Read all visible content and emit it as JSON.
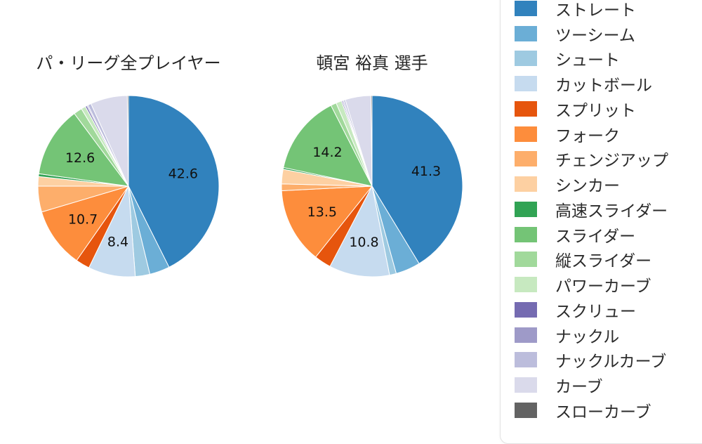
{
  "accent_colors": {
    "straight_blue": "#3182bd",
    "fork_orange": "#fd8d3c",
    "slider_green": "#74c476",
    "curve_lavender": "#dadaeb"
  },
  "chart_data": [
    {
      "type": "pie",
      "title": "パ・リーグ全プレイヤー",
      "unit": "%",
      "start_angle_deg": 0,
      "direction": "clockwise",
      "legend_position": "right",
      "series": [
        {
          "label": "ストレート",
          "value": 42.6,
          "color": "#3182bd",
          "show_label": true
        },
        {
          "label": "ツーシーム",
          "value": 3.6,
          "color": "#6baed6",
          "show_label": false
        },
        {
          "label": "シュート",
          "value": 2.6,
          "color": "#9ecae1",
          "show_label": false
        },
        {
          "label": "カットボール",
          "value": 8.4,
          "color": "#c6dbef",
          "show_label": true
        },
        {
          "label": "スプリット",
          "value": 2.5,
          "color": "#e6550d",
          "show_label": false
        },
        {
          "label": "フォーク",
          "value": 10.7,
          "color": "#fd8d3c",
          "show_label": true
        },
        {
          "label": "チェンジアップ",
          "value": 4.6,
          "color": "#fdae6b",
          "show_label": false
        },
        {
          "label": "シンカー",
          "value": 1.7,
          "color": "#fdd0a2",
          "show_label": false
        },
        {
          "label": "高速スライダー",
          "value": 0.5,
          "color": "#31a354",
          "show_label": false
        },
        {
          "label": "スライダー",
          "value": 12.6,
          "color": "#74c476",
          "show_label": true
        },
        {
          "label": "縦スライダー",
          "value": 1.5,
          "color": "#a1d99b",
          "show_label": false
        },
        {
          "label": "パワーカーブ",
          "value": 0.8,
          "color": "#c7e9c0",
          "show_label": false
        },
        {
          "label": "スクリュー",
          "value": 0.3,
          "color": "#756bb1",
          "show_label": false
        },
        {
          "label": "ナックル",
          "value": 0.2,
          "color": "#9e9ac8",
          "show_label": false
        },
        {
          "label": "ナックルカーブ",
          "value": 0.6,
          "color": "#bcbddc",
          "show_label": false
        },
        {
          "label": "カーブ",
          "value": 6.6,
          "color": "#dadaeb",
          "show_label": false
        },
        {
          "label": "スローカーブ",
          "value": 0.2,
          "color": "#636363",
          "show_label": false
        }
      ]
    },
    {
      "type": "pie",
      "title": "頓宮 裕真  選手",
      "unit": "%",
      "start_angle_deg": 0,
      "direction": "clockwise",
      "legend_position": "right",
      "series": [
        {
          "label": "ストレート",
          "value": 41.3,
          "color": "#3182bd",
          "show_label": true
        },
        {
          "label": "ツーシーム",
          "value": 4.4,
          "color": "#6baed6",
          "show_label": false
        },
        {
          "label": "シュート",
          "value": 1.2,
          "color": "#9ecae1",
          "show_label": false
        },
        {
          "label": "カットボール",
          "value": 10.8,
          "color": "#c6dbef",
          "show_label": true
        },
        {
          "label": "スプリット",
          "value": 3.0,
          "color": "#e6550d",
          "show_label": false
        },
        {
          "label": "フォーク",
          "value": 13.5,
          "color": "#fd8d3c",
          "show_label": true
        },
        {
          "label": "チェンジアップ",
          "value": 1.2,
          "color": "#fdae6b",
          "show_label": false
        },
        {
          "label": "シンカー",
          "value": 2.6,
          "color": "#fdd0a2",
          "show_label": false
        },
        {
          "label": "高速スライダー",
          "value": 0.3,
          "color": "#31a354",
          "show_label": false
        },
        {
          "label": "スライダー",
          "value": 14.2,
          "color": "#74c476",
          "show_label": true
        },
        {
          "label": "縦スライダー",
          "value": 1.0,
          "color": "#a1d99b",
          "show_label": false
        },
        {
          "label": "パワーカーブ",
          "value": 1.0,
          "color": "#c7e9c0",
          "show_label": false
        },
        {
          "label": "スクリュー",
          "value": 0.2,
          "color": "#756bb1",
          "show_label": false
        },
        {
          "label": "ナックル",
          "value": 0.2,
          "color": "#9e9ac8",
          "show_label": false
        },
        {
          "label": "ナックルカーブ",
          "value": 0.3,
          "color": "#bcbddc",
          "show_label": false
        },
        {
          "label": "カーブ",
          "value": 4.6,
          "color": "#dadaeb",
          "show_label": false
        },
        {
          "label": "スローカーブ",
          "value": 0.2,
          "color": "#636363",
          "show_label": false
        }
      ]
    }
  ],
  "legend": {
    "items": [
      {
        "label": "ストレート",
        "color": "#3182bd"
      },
      {
        "label": "ツーシーム",
        "color": "#6baed6"
      },
      {
        "label": "シュート",
        "color": "#9ecae1"
      },
      {
        "label": "カットボール",
        "color": "#c6dbef"
      },
      {
        "label": "スプリット",
        "color": "#e6550d"
      },
      {
        "label": "フォーク",
        "color": "#fd8d3c"
      },
      {
        "label": "チェンジアップ",
        "color": "#fdae6b"
      },
      {
        "label": "シンカー",
        "color": "#fdd0a2"
      },
      {
        "label": "高速スライダー",
        "color": "#31a354"
      },
      {
        "label": "スライダー",
        "color": "#74c476"
      },
      {
        "label": "縦スライダー",
        "color": "#a1d99b"
      },
      {
        "label": "パワーカーブ",
        "color": "#c7e9c0"
      },
      {
        "label": "スクリュー",
        "color": "#756bb1"
      },
      {
        "label": "ナックル",
        "color": "#9e9ac8"
      },
      {
        "label": "ナックルカーブ",
        "color": "#bcbddc"
      },
      {
        "label": "カーブ",
        "color": "#dadaeb"
      },
      {
        "label": "スローカーブ",
        "color": "#636363"
      }
    ]
  }
}
